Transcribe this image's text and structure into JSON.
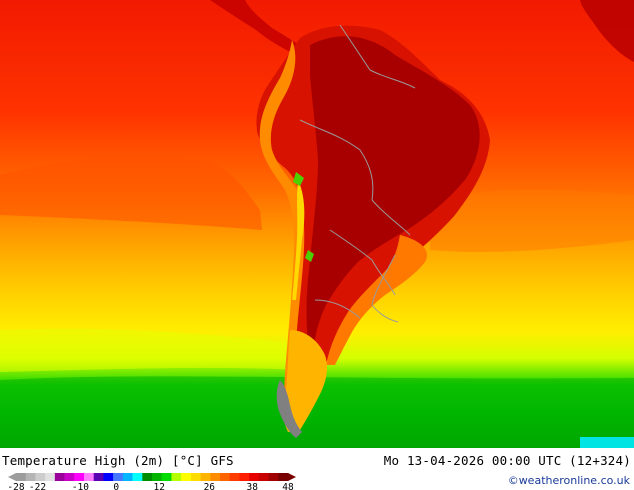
{
  "map": {
    "title": "Temperature High (2m) [°C] GFS",
    "valid_time": "Mo 13-04-2026 00:00 UTC (12+324)",
    "credit": "©weatheronline.co.uk",
    "region": "South America"
  },
  "legend": {
    "tick_labels": [
      "-28",
      "-22",
      "-10",
      "0",
      "12",
      "26",
      "38",
      "48"
    ],
    "tick_values": [
      -28,
      -22,
      -10,
      0,
      12,
      26,
      38,
      48
    ],
    "range": [
      -28,
      48
    ],
    "colors": [
      "#9c9c9c",
      "#b4b4b4",
      "#cccccc",
      "#e1e1e1",
      "#9b009b",
      "#c800c8",
      "#ff00ff",
      "#ff7bff",
      "#5a00b4",
      "#0000ff",
      "#4678ff",
      "#00b4ff",
      "#00ffff",
      "#008c00",
      "#00b400",
      "#00dc00",
      "#b4ff00",
      "#ffff00",
      "#ffdc00",
      "#ffb400",
      "#ff8c00",
      "#ff6400",
      "#ff3c00",
      "#ff1e00",
      "#e60000",
      "#c80000",
      "#a00000",
      "#780000"
    ]
  }
}
